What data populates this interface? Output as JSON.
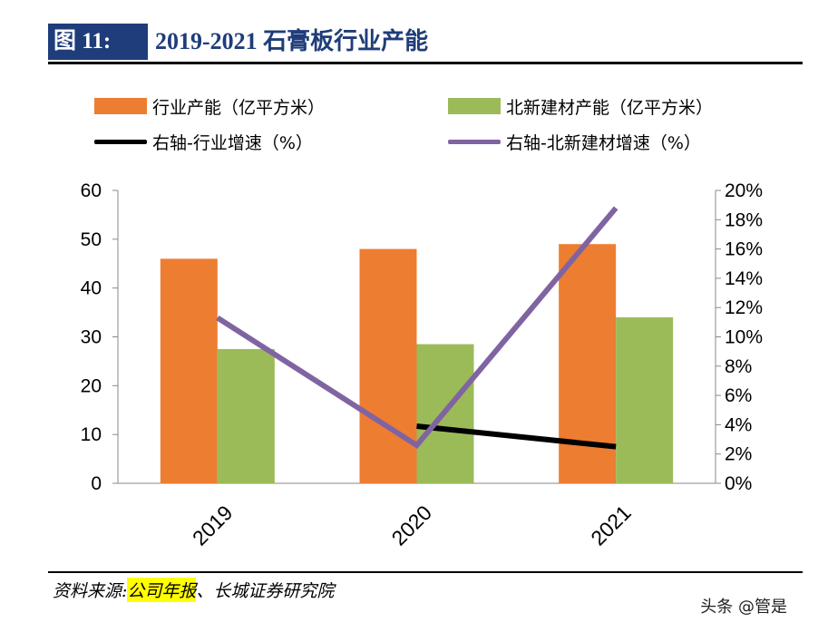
{
  "header": {
    "figure_tag": "图 11:",
    "title": "2019-2021 石膏板行业产能"
  },
  "legend": {
    "items": [
      {
        "label": "行业产能（亿平方米）",
        "kind": "bar",
        "color": "#ed7d31"
      },
      {
        "label": "北新建材产能（亿平方米）",
        "kind": "bar",
        "color": "#9bbb59"
      },
      {
        "label": "右轴-行业增速（%）",
        "kind": "line",
        "color": "#000000"
      },
      {
        "label": "右轴-北新建材增速（%）",
        "kind": "line",
        "color": "#8064a2"
      }
    ]
  },
  "chart_data": {
    "type": "bar",
    "categories": [
      "2019",
      "2020",
      "2021"
    ],
    "series": [
      {
        "name": "行业产能（亿平方米）",
        "type": "bar",
        "axis": "left",
        "color": "#ed7d31",
        "values": [
          46,
          48,
          49
        ]
      },
      {
        "name": "北新建材产能（亿平方米）",
        "type": "bar",
        "axis": "left",
        "color": "#9bbb59",
        "values": [
          27.5,
          28.5,
          34
        ]
      },
      {
        "name": "右轴-行业增速（%）",
        "type": "line",
        "axis": "right",
        "color": "#000000",
        "values": [
          null,
          3.9,
          2.5
        ]
      },
      {
        "name": "右轴-北新建材增速（%）",
        "type": "line",
        "axis": "right",
        "color": "#8064a2",
        "values": [
          11.3,
          2.6,
          18.8
        ]
      }
    ],
    "y_left": {
      "range": [
        0,
        60
      ],
      "ticks": [
        "0",
        "10",
        "20",
        "30",
        "40",
        "50",
        "60"
      ]
    },
    "y_right": {
      "range": [
        0,
        20
      ],
      "ticks": [
        "0%",
        "2%",
        "4%",
        "6%",
        "8%",
        "10%",
        "12%",
        "14%",
        "16%",
        "18%",
        "20%"
      ]
    },
    "grid": false,
    "legend_position": "top"
  },
  "footer": {
    "source_prefix": "资料来源:",
    "source_highlight": "公司年报",
    "source_suffix": "、长城证券研究院",
    "watermark": "头条 @管是"
  }
}
